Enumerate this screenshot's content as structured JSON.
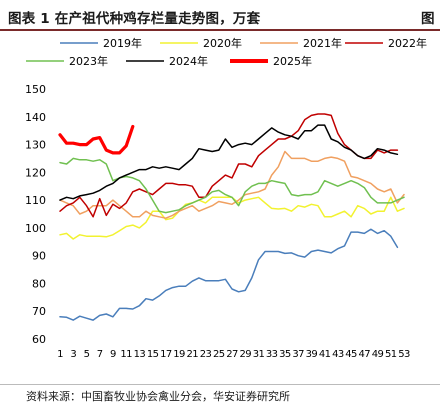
{
  "header": {
    "title": "图表 1  在产祖代种鸡存栏量走势图，万套",
    "title_right": "图"
  },
  "footer": {
    "source": "资料来源：中国畜牧业协会禽业分会，华安证券研究所"
  },
  "chart_data": {
    "type": "line",
    "title": "",
    "xlabel": "",
    "ylabel": "",
    "ylim": [
      60,
      150
    ],
    "yticks": [
      60,
      70,
      80,
      90,
      100,
      110,
      120,
      130,
      140,
      150
    ],
    "xlim": [
      1,
      53
    ],
    "xtick_labels": [
      "1",
      "3",
      "5",
      "7",
      "9",
      "11",
      "13",
      "15",
      "17",
      "19",
      "21",
      "23",
      "25",
      "27",
      "29",
      "31",
      "33",
      "35",
      "37",
      "39",
      "41",
      "43",
      "45",
      "47",
      "49",
      "51",
      "53"
    ],
    "grid": false,
    "legend": "top",
    "series": [
      {
        "name": "2019年",
        "color": "#4a7ebb",
        "width": 1.5,
        "x": [
          1,
          2,
          3,
          4,
          5,
          6,
          7,
          8,
          9,
          10,
          11,
          12,
          13,
          14,
          15,
          16,
          17,
          18,
          19,
          20,
          21,
          22,
          23,
          24,
          25,
          26,
          27,
          28,
          29,
          30,
          31,
          32,
          33,
          34,
          35,
          36,
          37,
          38,
          39,
          40,
          41,
          42,
          43,
          44,
          45,
          46,
          47,
          48,
          49,
          50,
          51,
          52
        ],
        "values": [
          68,
          67.8,
          66.8,
          68.2,
          67.5,
          66.8,
          68.5,
          69,
          68,
          71,
          71,
          70.8,
          72,
          74.5,
          74,
          75.5,
          77.5,
          78.5,
          79,
          79,
          80.8,
          82,
          81,
          81,
          81,
          81.5,
          78,
          77,
          77.5,
          82,
          88.5,
          91.5,
          91.5,
          91.5,
          90.8,
          91,
          90,
          89.5,
          91.5,
          92,
          91.5,
          91,
          92.5,
          93.5,
          98.5,
          98.5,
          98,
          99.5,
          98,
          99,
          97,
          93
        ]
      },
      {
        "name": "2020年",
        "color": "#f2f230",
        "width": 1.5,
        "x": [
          1,
          2,
          3,
          4,
          5,
          6,
          7,
          8,
          9,
          10,
          11,
          12,
          13,
          14,
          15,
          16,
          17,
          18,
          19,
          20,
          21,
          22,
          23,
          24,
          25,
          26,
          27,
          28,
          29,
          30,
          31,
          32,
          33,
          34,
          35,
          36,
          37,
          38,
          39,
          40,
          41,
          42,
          43,
          44,
          45,
          46,
          47,
          48,
          49,
          50,
          51,
          52,
          53
        ],
        "values": [
          97.5,
          98,
          96,
          97.5,
          97,
          97,
          97,
          96.8,
          97.5,
          99,
          100.5,
          101,
          100,
          102,
          106,
          106,
          103,
          103.5,
          106,
          108.5,
          109,
          110,
          109,
          111,
          111,
          111,
          111,
          109,
          110,
          110.5,
          111,
          109,
          107,
          106.8,
          107,
          106,
          108,
          107.5,
          108.5,
          108,
          104,
          104,
          105,
          106,
          104,
          108,
          107,
          105,
          106,
          106,
          111,
          106,
          107
        ]
      },
      {
        "name": "2021年",
        "color": "#f0a060",
        "width": 1.5,
        "x": [
          1,
          2,
          3,
          4,
          5,
          6,
          7,
          8,
          9,
          10,
          11,
          12,
          13,
          14,
          15,
          16,
          17,
          18,
          19,
          20,
          21,
          22,
          23,
          24,
          25,
          26,
          27,
          28,
          29,
          30,
          31,
          32,
          33,
          34,
          35,
          36,
          37,
          38,
          39,
          40,
          41,
          42,
          43,
          44,
          45,
          46,
          47,
          48,
          49,
          50,
          51,
          52,
          53
        ],
        "values": [
          110,
          109,
          108,
          105,
          106,
          108,
          108,
          108,
          110,
          108,
          106,
          104,
          104,
          106,
          104.5,
          104,
          103.5,
          104.5,
          106,
          107,
          108,
          106,
          107,
          108,
          109.5,
          109,
          108.5,
          110,
          112,
          112.5,
          113,
          114,
          119,
          122,
          127.5,
          125,
          125,
          125,
          124,
          124,
          125,
          125.5,
          125,
          124,
          118.5,
          118,
          117,
          116,
          114,
          113,
          114,
          109,
          112
        ]
      },
      {
        "name": "2022年",
        "color": "#c00000",
        "width": 1.5,
        "x": [
          1,
          2,
          3,
          4,
          5,
          6,
          7,
          8,
          9,
          10,
          11,
          12,
          13,
          14,
          15,
          16,
          17,
          18,
          19,
          20,
          21,
          22,
          23,
          24,
          25,
          26,
          27,
          28,
          29,
          30,
          31,
          32,
          33,
          34,
          35,
          36,
          37,
          38,
          39,
          40,
          41,
          42,
          43,
          44,
          45,
          46,
          47,
          48,
          49,
          50,
          51,
          52
        ],
        "values": [
          106,
          108,
          109,
          111,
          108,
          104,
          110.5,
          104.5,
          108.5,
          107,
          109,
          113,
          114,
          113,
          112,
          114,
          116,
          116,
          115.5,
          115.5,
          115,
          111,
          111,
          115,
          117,
          119,
          118,
          123,
          123,
          122,
          126,
          128,
          130,
          132,
          132,
          133,
          135,
          139,
          140.5,
          141,
          141,
          140.5,
          134,
          130,
          128,
          126,
          125,
          125,
          128,
          127,
          128,
          128
        ]
      },
      {
        "name": "2023年",
        "color": "#70c050",
        "width": 1.5,
        "x": [
          1,
          2,
          3,
          4,
          5,
          6,
          7,
          8,
          9,
          10,
          11,
          12,
          13,
          14,
          15,
          16,
          17,
          18,
          19,
          20,
          21,
          22,
          23,
          24,
          25,
          26,
          27,
          28,
          29,
          30,
          31,
          32,
          33,
          34,
          35,
          36,
          37,
          38,
          39,
          40,
          41,
          42,
          43,
          44,
          45,
          46,
          47,
          48,
          49,
          50,
          51,
          52,
          53
        ],
        "values": [
          123.5,
          123,
          125,
          124.5,
          124.5,
          124,
          124.5,
          123,
          117,
          118,
          118.5,
          118,
          117,
          114,
          110,
          106,
          105.5,
          106,
          106.5,
          108,
          109,
          110,
          111,
          113,
          113.5,
          112,
          111,
          108,
          113,
          115,
          116,
          116,
          117,
          116.5,
          116,
          112,
          111.5,
          112,
          112,
          113,
          117,
          116,
          115,
          116,
          117,
          116,
          114.5,
          111,
          109,
          109,
          109,
          110,
          111
        ]
      },
      {
        "name": "2024年",
        "color": "#000000",
        "width": 1.5,
        "x": [
          1,
          2,
          3,
          4,
          5,
          6,
          7,
          8,
          9,
          10,
          11,
          12,
          13,
          14,
          15,
          16,
          17,
          18,
          19,
          20,
          21,
          22,
          23,
          24,
          25,
          26,
          27,
          28,
          29,
          30,
          31,
          32,
          33,
          34,
          35,
          36,
          37,
          38,
          39,
          40,
          41,
          42,
          43,
          44,
          45,
          46,
          47,
          48,
          49,
          50,
          51,
          52
        ],
        "values": [
          110,
          111,
          110.5,
          111.5,
          112,
          112.5,
          113.5,
          115,
          116,
          118,
          119,
          120,
          121,
          121,
          122,
          121.5,
          122,
          121.5,
          121,
          123,
          125,
          128.5,
          128,
          127.5,
          128,
          132,
          129,
          130,
          130.5,
          130,
          132,
          134,
          136,
          134.5,
          133.5,
          133,
          132,
          135,
          135,
          137,
          137,
          132,
          131,
          129,
          128,
          126,
          125,
          126,
          128.5,
          128,
          127,
          126.5
        ]
      },
      {
        "name": "2025年",
        "color": "#ff0000",
        "width": 3.2,
        "x": [
          1,
          2,
          3,
          4,
          5,
          6,
          7,
          8,
          9,
          10,
          11,
          12
        ],
        "values": [
          133.5,
          130.5,
          130.5,
          130,
          130,
          132,
          132.5,
          128,
          127,
          127,
          129.5,
          136.5
        ]
      }
    ]
  }
}
